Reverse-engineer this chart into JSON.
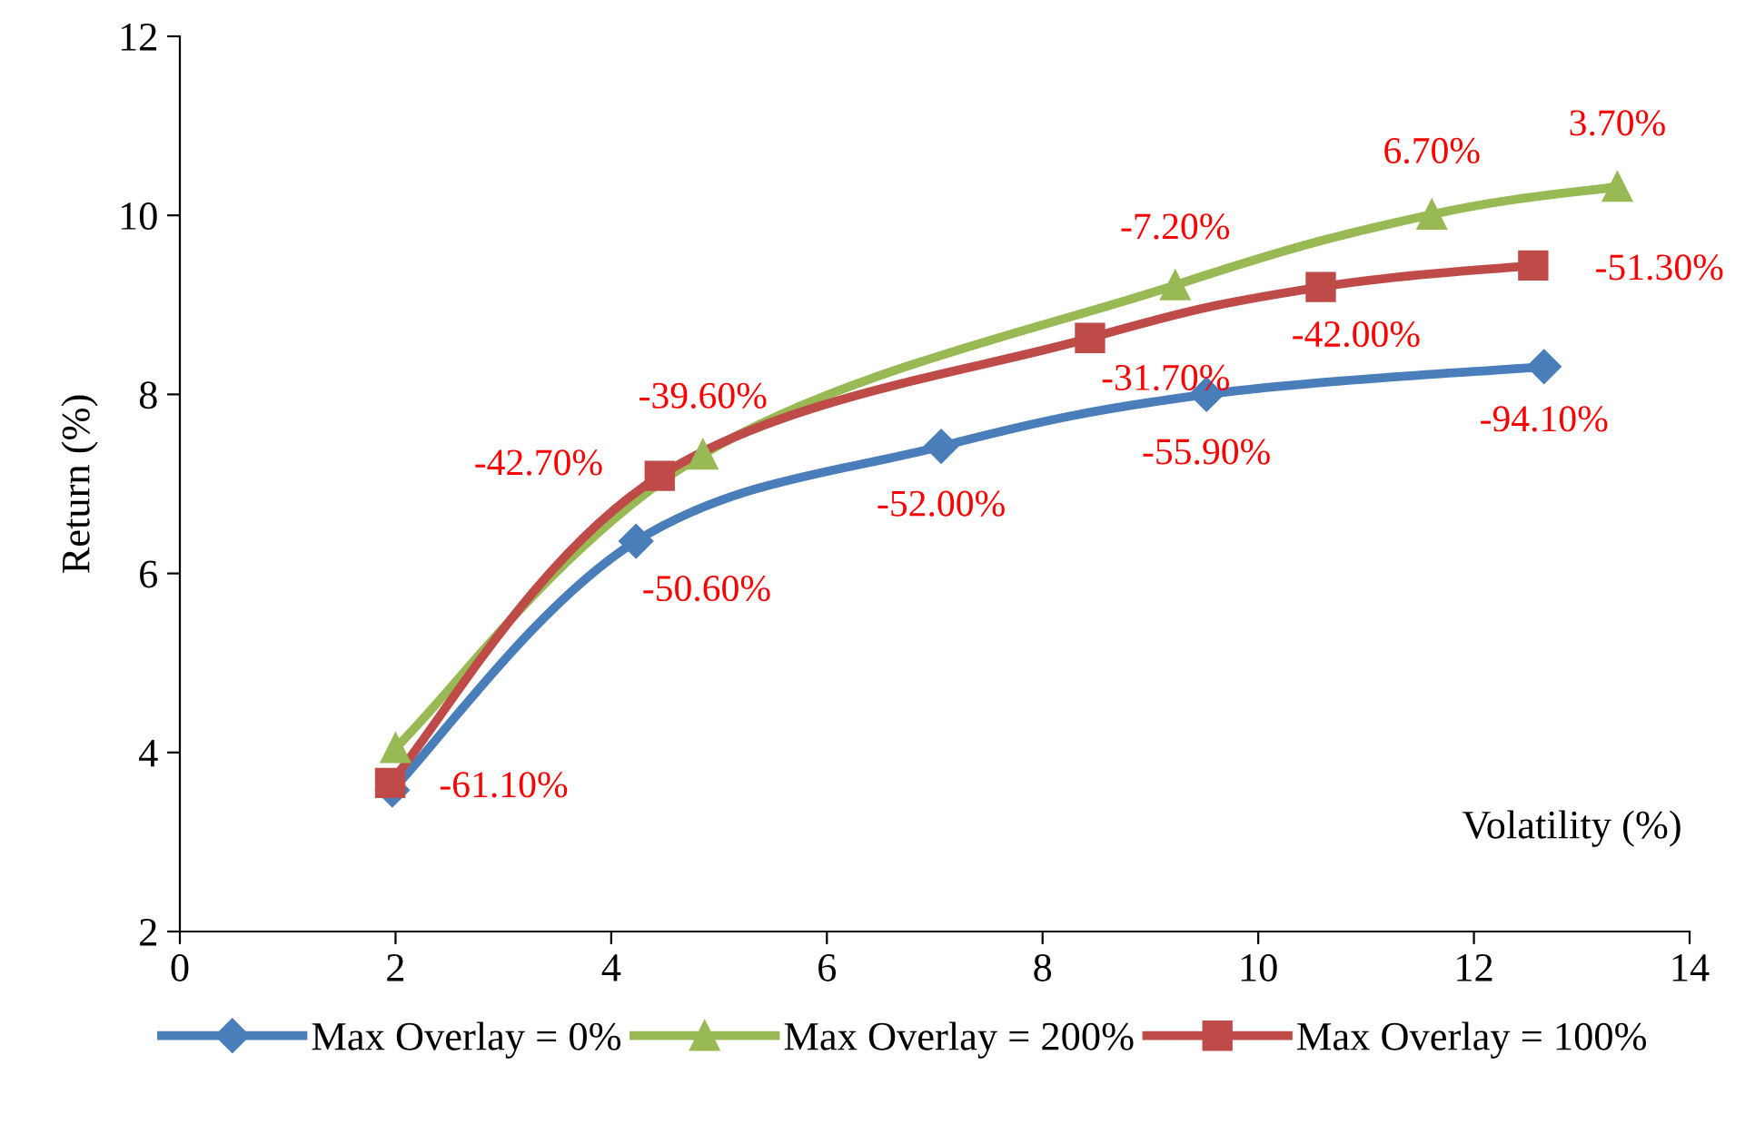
{
  "chart_data": {
    "type": "line",
    "xlabel": "Volatility (%)",
    "ylabel": "Return (%)",
    "xlim": [
      0,
      14
    ],
    "xticks": [
      0,
      2,
      4,
      6,
      8,
      10,
      12,
      14
    ],
    "ylim": [
      2,
      12
    ],
    "yticks": [
      2,
      4,
      6,
      8,
      10,
      12
    ],
    "grid": false,
    "legend": "bottom",
    "line_style": "solid",
    "series": [
      {
        "name": "Max Overlay = 0%",
        "color": "#4a7ebb",
        "marker": "diamond",
        "x": [
          1.97,
          4.23,
          7.06,
          9.52,
          12.65
        ],
        "values": [
          3.58,
          6.36,
          7.42,
          8.0,
          8.31
        ]
      },
      {
        "name": "Max Overlay = 200%",
        "color": "#98b954",
        "marker": "triangle",
        "x": [
          2.0,
          4.85,
          9.23,
          11.61,
          13.33
        ],
        "values": [
          4.05,
          7.33,
          9.22,
          10.01,
          10.32
        ]
      },
      {
        "name": "Max Overlay = 100%",
        "color": "#be4b48",
        "marker": "square",
        "x": [
          1.95,
          4.45,
          8.44,
          10.58,
          12.55
        ],
        "values": [
          3.66,
          7.09,
          8.63,
          9.2,
          9.44
        ]
      }
    ],
    "annotations": [
      {
        "text": "-50.60%",
        "x": 4.23,
        "y": 6.36
      },
      {
        "text": "-52.00%",
        "x": 7.06,
        "y": 7.42
      },
      {
        "text": "-55.90%",
        "x": 9.52,
        "y": 8.0
      },
      {
        "text": "-94.10%",
        "x": 12.65,
        "y": 8.31
      },
      {
        "text": "-39.60%",
        "x": 4.85,
        "y": 7.33
      },
      {
        "text": "-7.20%",
        "x": 9.23,
        "y": 9.22
      },
      {
        "text": "6.70%",
        "x": 11.61,
        "y": 10.01
      },
      {
        "text": "3.70%",
        "x": 13.33,
        "y": 10.32
      },
      {
        "text": "-61.10%",
        "x": 1.95,
        "y": 3.66
      },
      {
        "text": "-42.70%",
        "x": 4.45,
        "y": 7.09
      },
      {
        "text": "-31.70%",
        "x": 8.44,
        "y": 8.63
      },
      {
        "text": "-42.00%",
        "x": 10.58,
        "y": 9.2
      },
      {
        "text": "-51.30%",
        "x": 12.55,
        "y": 9.44
      }
    ]
  }
}
